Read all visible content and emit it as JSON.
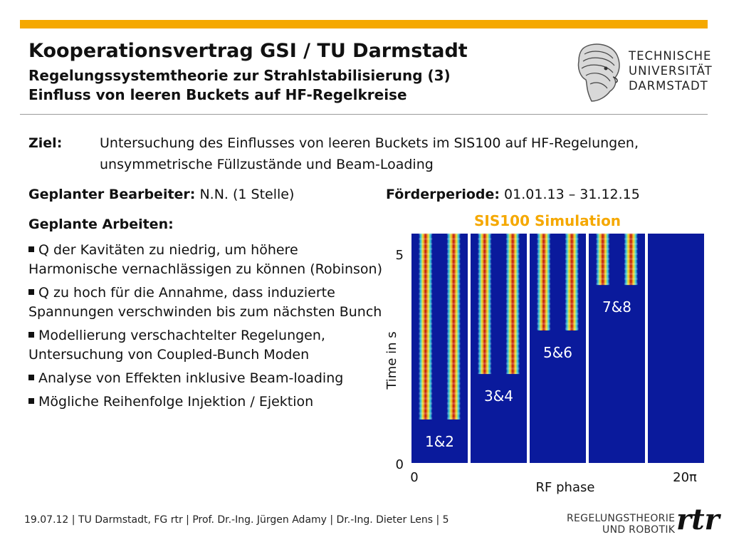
{
  "header": {
    "title": "Kooperationsvertrag GSI / TU Darmstadt",
    "subtitle_1": "Regelungssystemtheorie zur Strahlstabilisierung (3)",
    "subtitle_2": "Einfluss von leeren Buckets auf HF-Regelkreise",
    "logo_lines": [
      "TECHNISCHE",
      "UNIVERSITÄT",
      "DARMSTADT"
    ],
    "accent_color": "#f5a800"
  },
  "goal": {
    "label": "Ziel:",
    "text": "Untersuchung des Einflusses von leeren Buckets im SIS100 auf HF-Regelungen, unsymmetrische Füllzustände und Beam-Loading"
  },
  "planning": {
    "staff_label": "Geplanter Bearbeiter:",
    "staff_value": "N.N. (1 Stelle)",
    "period_label": "Förderperiode:",
    "period_value": "01.01.13 – 31.12.15",
    "work_label": "Geplante Arbeiten:"
  },
  "bullets": [
    "Q der Kavitäten zu niedrig, um höhere Harmonische vernachlässigen zu können (Robinson)",
    "Q zu hoch für die Annahme, dass induzierte Spannungen verschwinden bis zum nächsten Bunch",
    "Modellierung verschachtelter Regelungen, Untersuchung von Coupled-Bunch Moden",
    "Analyse von Effekten inklusive Beam-loading",
    "Mögliche Reihenfolge Injektion / Ejektion"
  ],
  "chart_data": {
    "type": "heatmap",
    "title": "SIS100 Simulation",
    "xlabel": "RF phase",
    "ylabel": "Time in s",
    "x_tick_labels": [
      "0",
      "20π"
    ],
    "y_tick_labels": [
      "0",
      "5"
    ],
    "xlim": [
      0,
      20
    ],
    "ylim": [
      0,
      5.8
    ],
    "panels": [
      {
        "label": "1&2",
        "fill_start_time": 1.1
      },
      {
        "label": "3&4",
        "fill_start_time": 2.25
      },
      {
        "label": "5&6",
        "fill_start_time": 3.35
      },
      {
        "label": "7&8",
        "fill_start_time": 4.5
      },
      {
        "label": "",
        "fill_start_time": null
      }
    ],
    "colors": {
      "background": "#0a1a9c",
      "bunch_core": "#c01010",
      "bunch_mid": "#f7e02a",
      "bunch_edge": "#35c7e0"
    }
  },
  "footer": {
    "text": "19.07.12  |  TU Darmstadt, FG rtr  |  Prof. Dr.-Ing. Jürgen Adamy   |  Dr.-Ing. Dieter Lens  |  5",
    "logo_line_1": "REGELUNGSTHEORIE",
    "logo_line_2": "UND ROBOTIK",
    "logo_mark": "rtr"
  }
}
